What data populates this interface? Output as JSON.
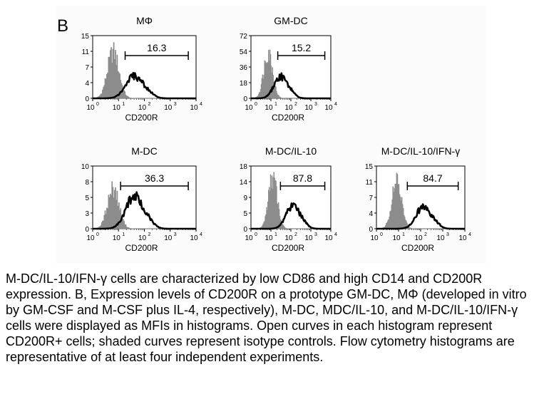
{
  "figure": {
    "panel_letter": "B",
    "x_axis_label": "CD200R",
    "x_tick_labels": [
      "10",
      "10",
      "10",
      "10",
      "10"
    ],
    "x_tick_exponents": [
      "0",
      "1",
      "2",
      "3",
      "4"
    ]
  },
  "chart_data": [
    {
      "type": "area",
      "title": "MΦ",
      "xlabel": "CD200R",
      "x_scale": "log",
      "xlim": [
        1,
        10000
      ],
      "ylim": [
        0,
        15
      ],
      "y_ticks": [
        "0",
        "4",
        "7",
        "11",
        "15"
      ],
      "gate_value": "16.3",
      "gate_range": [
        18,
        5000
      ],
      "isotype_peak": [
        6,
        12
      ],
      "stained_peak": [
        40,
        5.5
      ]
    },
    {
      "type": "area",
      "title": "GM-DC",
      "xlabel": "CD200R",
      "x_scale": "log",
      "xlim": [
        1,
        10000
      ],
      "ylim": [
        0,
        72
      ],
      "y_ticks": [
        "0",
        "18",
        "36",
        "54",
        "72"
      ],
      "gate_value": "15.2",
      "gate_range": [
        22,
        5000
      ],
      "isotype_peak": [
        7,
        58
      ],
      "stained_peak": [
        30,
        26
      ]
    },
    {
      "type": "area",
      "title": "M-DC",
      "xlabel": "CD200R",
      "x_scale": "log",
      "xlim": [
        1,
        10000
      ],
      "ylim": [
        0,
        10
      ],
      "y_ticks": [
        "0",
        "3",
        "5",
        "8",
        "10"
      ],
      "gate_value": "36.3",
      "gate_range": [
        12,
        5000
      ],
      "isotype_peak": [
        6,
        7
      ],
      "stained_peak": [
        40,
        5.5
      ]
    },
    {
      "type": "area",
      "title": "M-DC/IL-10",
      "xlabel": "CD200R",
      "x_scale": "log",
      "xlim": [
        1,
        10000
      ],
      "ylim": [
        0,
        18
      ],
      "y_ticks": [
        "0",
        "5",
        "9",
        "14",
        "18"
      ],
      "gate_value": "87.8",
      "gate_range": [
        30,
        5000
      ],
      "isotype_peak": [
        12,
        16
      ],
      "stained_peak": [
        120,
        7
      ]
    },
    {
      "type": "area",
      "title": "M-DC/IL-10/IFN-γ",
      "xlabel": "CD200R",
      "x_scale": "log",
      "xlim": [
        1,
        10000
      ],
      "ylim": [
        0,
        15
      ],
      "y_ticks": [
        "0",
        "4",
        "7",
        "11",
        "15"
      ],
      "gate_value": "84.7",
      "gate_range": [
        25,
        5000
      ],
      "isotype_peak": [
        8,
        12
      ],
      "stained_peak": [
        130,
        5.5
      ]
    }
  ],
  "caption": "M-DC/IL-10/IFN-γ cells are characterized by low CD86 and high CD14 and CD200R expression. B, Expression levels of CD200R on a prototype GM-DC, MΦ (developed in vitro by GM-CSF and M-CSF plus IL-4, respectively), M-DC, MDC/IL-10, and M-DC/IL-10/IFN-γ cells were displayed as MFIs in histograms. Open curves in each histogram represent CD200R+ cells; shaded curves represent isotype controls. Flow cytometry histograms are representative of at least four independent experiments.",
  "colors": {
    "isotype_fill": "#8c8c8c",
    "stained_line": "#000000",
    "frame_fill": "#ffffff",
    "text": "#000000"
  }
}
